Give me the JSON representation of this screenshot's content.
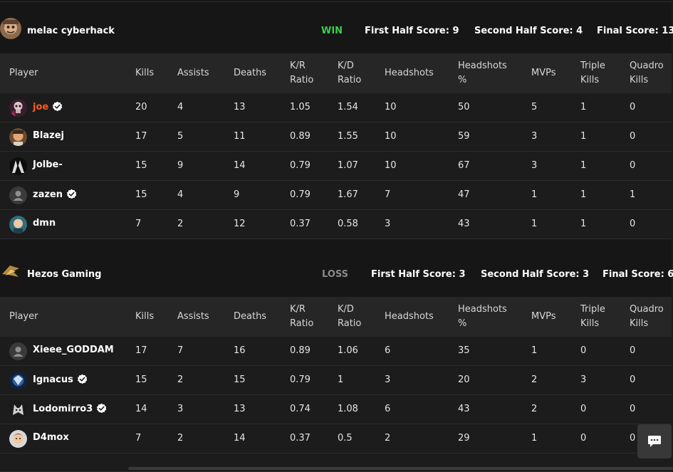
{
  "columns": [
    "Player",
    "Kills",
    "Assists",
    "Deaths",
    "K/R|Ratio",
    "K/D|Ratio",
    "Headshots",
    "Headshots|%",
    "MVPs",
    "Triple|Kills",
    "Quadro|Kills"
  ],
  "teams": [
    {
      "name": "melac cyberhack",
      "result": "WIN",
      "first_half": "First Half Score: 9",
      "second_half": "Second Half Score: 4",
      "final": "Final Score: 13",
      "players": [
        {
          "name": "joe",
          "verified": true,
          "highlight": true,
          "avatar": "skull-avatar",
          "stats": [
            "20",
            "4",
            "13",
            "1.05",
            "1.54",
            "10",
            "50",
            "5",
            "1",
            "0"
          ]
        },
        {
          "name": "Blazej",
          "verified": false,
          "highlight": false,
          "avatar": "face-avatar",
          "stats": [
            "17",
            "5",
            "11",
            "0.89",
            "1.55",
            "10",
            "59",
            "3",
            "1",
            "0"
          ]
        },
        {
          "name": "Jolbe-",
          "verified": false,
          "highlight": false,
          "avatar": "dark-avatar",
          "stats": [
            "15",
            "9",
            "14",
            "0.79",
            "1.07",
            "10",
            "67",
            "3",
            "1",
            "0"
          ]
        },
        {
          "name": "zazen",
          "verified": true,
          "highlight": false,
          "avatar": "default-avatar",
          "stats": [
            "15",
            "4",
            "9",
            "0.79",
            "1.67",
            "7",
            "47",
            "1",
            "1",
            "1"
          ]
        },
        {
          "name": "dmn",
          "verified": false,
          "highlight": false,
          "avatar": "character-avatar",
          "stats": [
            "7",
            "2",
            "12",
            "0.37",
            "0.58",
            "3",
            "43",
            "1",
            "1",
            "0"
          ]
        }
      ]
    },
    {
      "name": "Hezos Gaming",
      "result": "LOSS",
      "first_half": "First Half Score: 3",
      "second_half": "Second Half Score: 3",
      "final": "Final Score: 6",
      "players": [
        {
          "name": "Xieee_GODDAM",
          "verified": false,
          "highlight": false,
          "avatar": "default-avatar",
          "stats": [
            "17",
            "7",
            "16",
            "0.89",
            "1.06",
            "6",
            "35",
            "1",
            "0",
            "0"
          ]
        },
        {
          "name": "Ignacus",
          "verified": true,
          "highlight": false,
          "avatar": "blue-avatar",
          "stats": [
            "15",
            "2",
            "15",
            "0.79",
            "1",
            "3",
            "20",
            "2",
            "3",
            "0"
          ]
        },
        {
          "name": "Lodomirro3",
          "verified": true,
          "highlight": false,
          "avatar": "wolf-avatar",
          "stats": [
            "14",
            "3",
            "13",
            "0.74",
            "1.08",
            "6",
            "43",
            "2",
            "0",
            "0"
          ]
        },
        {
          "name": "D4mox",
          "verified": false,
          "highlight": false,
          "avatar": "cartoon-avatar",
          "stats": [
            "7",
            "2",
            "14",
            "0.37",
            "0.5",
            "2",
            "29",
            "1",
            "0",
            "0"
          ]
        }
      ]
    }
  ],
  "colors": {
    "win": "#3ccd4e",
    "loss": "#8a8a8a",
    "highlight_name": "#ff5a1f",
    "verified": "#ffffff"
  },
  "chat_button_icon": "chat-icon"
}
